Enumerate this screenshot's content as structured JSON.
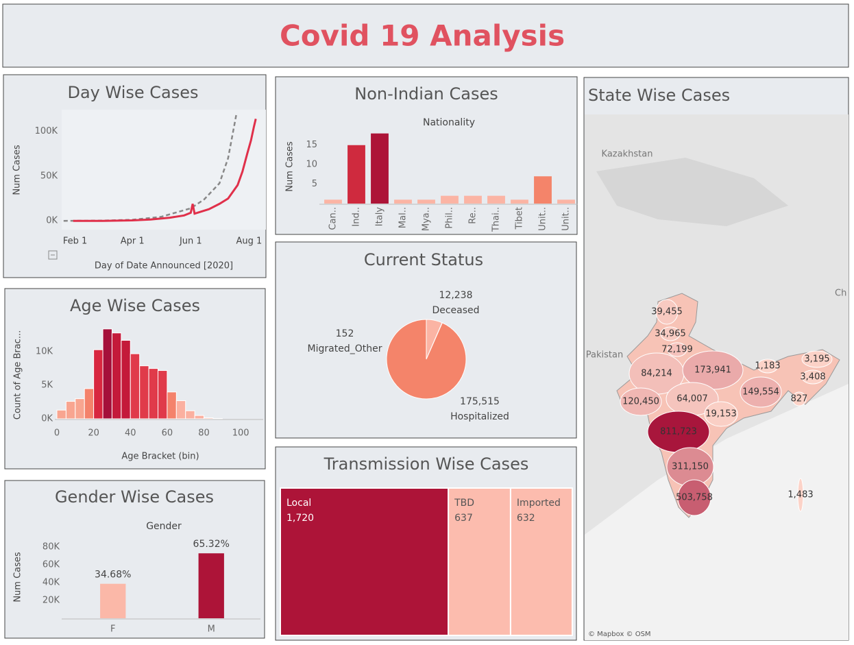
{
  "title": "Covid  19 Analysis",
  "chart_data": [
    {
      "type": "line",
      "title": "Day Wise Cases",
      "x_label": "Day of Date Announced [2020]",
      "y_label": "Num Cases",
      "x": [
        "2020-01-30",
        "2020-03-01",
        "2020-04-01",
        "2020-04-20",
        "2020-05-10",
        "2020-05-25",
        "2020-06-01",
        "2020-06-03",
        "2020-06-05",
        "2020-06-20",
        "2020-07-01",
        "2020-07-10",
        "2020-07-20",
        "2020-07-25",
        "2020-07-30",
        "2020-08-03",
        "2020-08-06",
        "2020-08-08"
      ],
      "series": [
        {
          "color": "#888888",
          "dash": true,
          "x": [
            "2020-01-20",
            "2020-03-01",
            "2020-04-01",
            "2020-05-01",
            "2020-06-01",
            "2020-06-15",
            "2020-07-01",
            "2020-07-10",
            "2020-07-19"
          ],
          "values": [
            0,
            300,
            1200,
            4500,
            14000,
            24000,
            42000,
            70000,
            121000
          ]
        },
        {
          "color": "#e0304a",
          "values": [
            0,
            0,
            500,
            1500,
            3500,
            6000,
            9000,
            19000,
            8000,
            13000,
            19000,
            25000,
            40000,
            55000,
            75000,
            90000,
            105000,
            114000
          ]
        }
      ],
      "xlim": [
        "2020-01-18",
        "2020-08-10"
      ],
      "xticks": [
        {
          "value": "2020-02-01",
          "label": "Feb 1"
        },
        {
          "value": "2020-04-01",
          "label": "Apr 1"
        },
        {
          "value": "2020-06-01",
          "label": "Jun 1"
        },
        {
          "value": "2020-08-01",
          "label": "Aug 1"
        }
      ],
      "ylim": [
        -6000,
        122000
      ],
      "yticks": [
        {
          "value": 0,
          "label": "0K"
        },
        {
          "value": 50000,
          "label": "50K"
        },
        {
          "value": 100000,
          "label": "100K"
        }
      ]
    },
    {
      "type": "bar",
      "title": "Non-Indian Cases",
      "subtitle": "Nationality",
      "y_label": "Num Cases",
      "categories": [
        "Can..",
        "Ind..",
        "Italy",
        "Mal..",
        "Mya..",
        "Phil..",
        "Re..",
        "Thai..",
        "Tibet",
        "Unit..",
        "Unit.."
      ],
      "values": [
        1,
        15,
        18,
        1,
        1,
        2,
        2,
        2,
        1,
        7,
        1
      ],
      "colors": [
        "#fbb4a4",
        "#cf2a3e",
        "#ad1438",
        "#fbb4a4",
        "#fbb4a4",
        "#fbb4a4",
        "#fbb4a4",
        "#fbb4a4",
        "#fbb4a4",
        "#f4846a",
        "#fbb4a4"
      ],
      "ylim": [
        0,
        19
      ],
      "yticks": [
        5,
        10,
        15
      ]
    },
    {
      "type": "pie",
      "title": "Current Status",
      "categories": [
        "Deceased",
        "Migrated_Other",
        "Hospitalized"
      ],
      "values": [
        12238,
        152,
        175515
      ],
      "value_labels": [
        "12,238",
        "152",
        "175,515"
      ],
      "colors": [
        "#fbb4a4",
        "#ad1438",
        "#f4846a"
      ]
    },
    {
      "type": "treemap",
      "title": "Transmission Wise Cases",
      "categories": [
        "Local",
        "TBD",
        "Imported"
      ],
      "values": [
        1720,
        637,
        632
      ],
      "value_labels": [
        "1,720",
        "637",
        "632"
      ],
      "colors": [
        "#ad1438",
        "#fcbcae",
        "#fcbcae"
      ]
    },
    {
      "type": "histogram",
      "title": "Age Wise Cases",
      "x_label": "Age Bracket (bin)",
      "y_label": "Count of Age Brac...",
      "bins": [
        0,
        5,
        10,
        15,
        20,
        25,
        30,
        35,
        40,
        45,
        50,
        55,
        60,
        65,
        70,
        75,
        80,
        85,
        90
      ],
      "values": [
        1300,
        2600,
        3000,
        4500,
        10300,
        13400,
        12800,
        11700,
        9700,
        7900,
        7500,
        7200,
        4000,
        2700,
        1200,
        500,
        150,
        50
      ],
      "colors": [
        "#f8a590",
        "#f8a590",
        "#f8a590",
        "#f4826b",
        "#d8273f",
        "#a5103a",
        "#c41a3a",
        "#c41a3a",
        "#e03a4a",
        "#e03a4a",
        "#e03a4a",
        "#e03a4a",
        "#f4826b",
        "#fbb0a0",
        "#fbb0a0",
        "#fbb0a0",
        "#fbb0a0",
        "#fbb0a0"
      ],
      "xlim": [
        0,
        110
      ],
      "xticks": [
        0,
        20,
        40,
        60,
        80,
        100
      ],
      "ylim": [
        0,
        14000
      ],
      "yticks": [
        {
          "value": 0,
          "label": "0K"
        },
        {
          "value": 5000,
          "label": "5K"
        },
        {
          "value": 10000,
          "label": "10K"
        }
      ]
    },
    {
      "type": "bar",
      "title": "Gender Wise Cases",
      "subtitle": "Gender",
      "y_label": "Num Cases",
      "categories": [
        "F",
        "M"
      ],
      "values": [
        38700,
        72900
      ],
      "percentages": [
        34.68,
        65.32
      ],
      "percentage_labels": [
        "34.68%",
        "65.32%"
      ],
      "colors": [
        "#fbb8a8",
        "#ad1438"
      ],
      "ylim": [
        0,
        90000
      ],
      "yticks": [
        {
          "value": 20000,
          "label": "20K"
        },
        {
          "value": 40000,
          "label": "40K"
        },
        {
          "value": 60000,
          "label": "60K"
        },
        {
          "value": 80000,
          "label": "80K"
        }
      ]
    },
    {
      "type": "map",
      "title": "State Wise Cases",
      "values": [
        39455,
        34965,
        72199,
        84214,
        173941,
        1183,
        3195,
        3408,
        149554,
        827,
        120450,
        64007,
        19153,
        811723,
        311150,
        503758,
        1483
      ],
      "value_labels": [
        "39,455",
        "34,965",
        "72,199",
        "84,214",
        "173,941",
        "1,183",
        "3,195",
        "3,408",
        "149,554",
        "827",
        "120,450",
        "64,007",
        "19,153",
        "811,723",
        "311,150",
        "503,758",
        "1,483"
      ],
      "color_range": [
        "#fcd3c8",
        "#a8163c"
      ],
      "place_labels": [
        "Kazakhstan",
        "Pakistan",
        "Ch"
      ],
      "attribution": "© Mapbox © OSM"
    }
  ]
}
